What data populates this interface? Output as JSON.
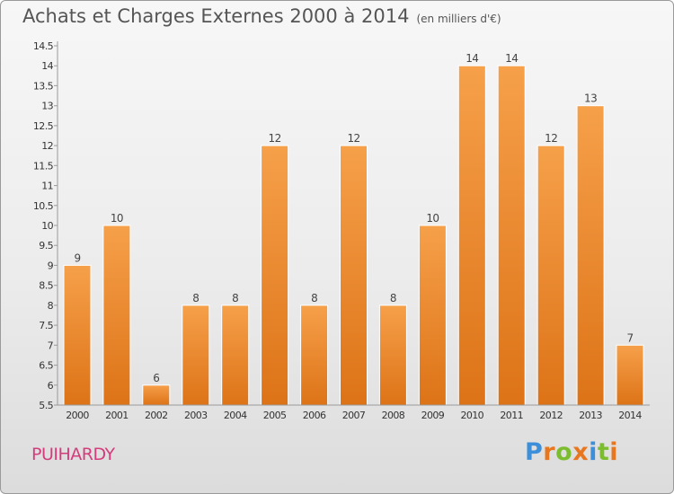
{
  "chart_data": {
    "type": "bar",
    "title": "Achats et Charges Externes 2000 à 2014",
    "subtitle": "(en milliers d'€)",
    "categories": [
      "2000",
      "2001",
      "2002",
      "2003",
      "2004",
      "2005",
      "2006",
      "2007",
      "2008",
      "2009",
      "2010",
      "2011",
      "2012",
      "2013",
      "2014"
    ],
    "values": [
      9,
      10,
      6,
      8,
      8,
      12,
      8,
      12,
      8,
      10,
      14,
      14,
      12,
      13,
      7
    ],
    "data_labels": [
      "9",
      "10",
      "6",
      "8",
      "8",
      "12",
      "8",
      "12",
      "8",
      "10",
      "14",
      "14",
      "12",
      "13",
      "7"
    ],
    "xlabel": "",
    "ylabel": "",
    "ylim": [
      5.5,
      14.5
    ],
    "yticks": [
      5.5,
      6,
      6.5,
      7,
      7.5,
      8,
      8.5,
      9,
      9.5,
      10,
      10.5,
      11,
      11.5,
      12,
      12.5,
      13,
      13.5,
      14,
      14.5
    ],
    "ytick_labels": [
      "5.5",
      "6",
      "6.5",
      "7",
      "7.5",
      "8",
      "8.5",
      "9",
      "9.5",
      "10",
      "10.5",
      "11",
      "11.5",
      "12",
      "12.5",
      "13",
      "13.5",
      "14",
      "14.5"
    ],
    "grid": false,
    "bar_color_top": "#f6a04a",
    "bar_color_bottom": "#dd7317",
    "axis_color": "#9a9a9a"
  },
  "footer": {
    "commune": "PUIHARDY",
    "commune_color": "#d43c7c"
  },
  "logo": {
    "letters": [
      "P",
      "r",
      "o",
      "x",
      "i",
      "t",
      "i"
    ],
    "colors": [
      "#3c8fd8",
      "#e8761e",
      "#7cbd2f",
      "#e8761e",
      "#3c8fd8",
      "#7cbd2f",
      "#e8761e"
    ]
  }
}
